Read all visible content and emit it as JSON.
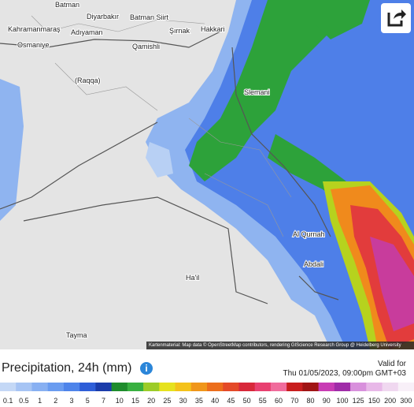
{
  "map": {
    "places": [
      "Batman",
      "Diyarbakır",
      "Batman Siirt",
      "Kahramanmaraş",
      "Adıyaman",
      "Osmaniye",
      "Şırnak",
      "Hakkari",
      "Qamishli",
      "(Raqqa)",
      "Slemani",
      "Al Qurnah",
      "Abdali",
      "Ha'il",
      "Tayma"
    ],
    "attribution": "Kartenmaterial: Map data © OpenStreetMap contributors, rendering GIScience Research Group @ Heidelberg University"
  },
  "legend": {
    "title": "Precipitation, 24h (mm)",
    "values": [
      0.1,
      0.5,
      1,
      2,
      3,
      5,
      7,
      10,
      15,
      20,
      25,
      30,
      35,
      40,
      45,
      50,
      55,
      60,
      70,
      80,
      90,
      100,
      125,
      150,
      200,
      300
    ],
    "colors": [
      "#c4d8f6",
      "#a6c4f4",
      "#88b0f2",
      "#6a9cf0",
      "#4e84ea",
      "#2e5ed8",
      "#1a3caa",
      "#1e8c2c",
      "#38b040",
      "#9ccc28",
      "#e6e21e",
      "#f4c21a",
      "#f0961a",
      "#ec6e1c",
      "#e44a28",
      "#d8283a",
      "#e84070",
      "#f06c9c",
      "#c81e1e",
      "#a01414",
      "#c83cb4",
      "#a02ca8",
      "#d890dc",
      "#e8b8e8",
      "#f0d8f0",
      "#f8f0f8"
    ]
  },
  "valid": {
    "label": "Valid for",
    "datetime": "Thu 01/05/2023, 09:00pm GMT+03"
  }
}
